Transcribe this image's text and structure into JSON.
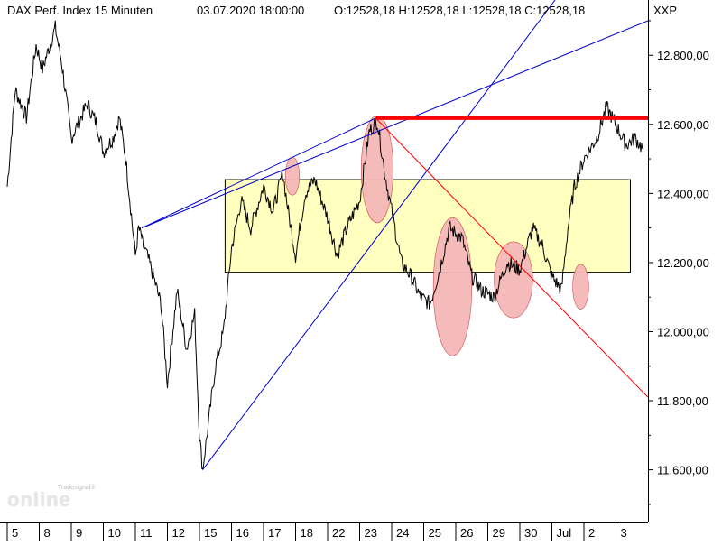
{
  "header": {
    "title": "DAX Perf. Index 15 Minuten",
    "datetime": "03.07.2020 18:00:00",
    "ohlc": "O:12528,18 H:12528,18 L:12528,18 C:12528,18",
    "unit": "XXP"
  },
  "logo": {
    "top": "Tradesignal®",
    "main": "online"
  },
  "colors": {
    "axis": "#000000",
    "price": "#000000",
    "trendline": "#0000cc",
    "resistance": "#ff0000",
    "box_fill": "#ffffc0",
    "ellipse_fill": "#f5b8b8"
  },
  "chart_data": {
    "type": "line",
    "ylim": [
      11450,
      12960
    ],
    "ylabels": [
      "12.800,00",
      "12.600,00",
      "12.400,00",
      "12.200,00",
      "12.000,00",
      "11.800,00",
      "11.600,00"
    ],
    "yvalues": [
      12800,
      12600,
      12400,
      12200,
      12000,
      11800,
      11600
    ],
    "xlabels": [
      "5",
      "8",
      "9",
      "10",
      "11",
      "12",
      "15",
      "16",
      "17",
      "18",
      "22",
      "23",
      "24",
      "25",
      "26",
      "29",
      "30",
      "Jul",
      "2",
      "3"
    ],
    "x_range": [
      0,
      20
    ],
    "session_starts": [
      0,
      1,
      2,
      3,
      4,
      5,
      6,
      7,
      8,
      9,
      10,
      11,
      12,
      13,
      14,
      15,
      16,
      17,
      18,
      19
    ],
    "price_path": [
      [
        0,
        12420
      ],
      [
        0.25,
        12700
      ],
      [
        0.6,
        12620
      ],
      [
        0.9,
        12830
      ],
      [
        1.1,
        12760
      ],
      [
        1.5,
        12880
      ],
      [
        1.7,
        12780
      ],
      [
        2.0,
        12560
      ],
      [
        2.5,
        12660
      ],
      [
        2.8,
        12600
      ],
      [
        3.0,
        12520
      ],
      [
        3.3,
        12560
      ],
      [
        3.5,
        12620
      ],
      [
        3.7,
        12500
      ],
      [
        4.0,
        12220
      ],
      [
        4.1,
        12300
      ],
      [
        4.5,
        12180
      ],
      [
        4.8,
        12080
      ],
      [
        5.0,
        11850
      ],
      [
        5.3,
        12120
      ],
      [
        5.6,
        11950
      ],
      [
        5.85,
        12050
      ],
      [
        6.0,
        11700
      ],
      [
        6.1,
        11600
      ],
      [
        6.5,
        11900
      ],
      [
        6.75,
        12000
      ],
      [
        7.0,
        12240
      ],
      [
        7.3,
        12380
      ],
      [
        7.6,
        12300
      ],
      [
        8.0,
        12420
      ],
      [
        8.3,
        12350
      ],
      [
        8.6,
        12460
      ],
      [
        8.8,
        12330
      ],
      [
        9.0,
        12220
      ],
      [
        9.3,
        12400
      ],
      [
        9.6,
        12440
      ],
      [
        10.0,
        12330
      ],
      [
        10.3,
        12220
      ],
      [
        10.6,
        12300
      ],
      [
        11.0,
        12380
      ],
      [
        11.3,
        12580
      ],
      [
        11.55,
        12610
      ],
      [
        11.8,
        12450
      ],
      [
        12.0,
        12350
      ],
      [
        12.3,
        12200
      ],
      [
        12.6,
        12160
      ],
      [
        12.9,
        12100
      ],
      [
        13.2,
        12080
      ],
      [
        13.5,
        12180
      ],
      [
        13.8,
        12300
      ],
      [
        14.2,
        12270
      ],
      [
        14.5,
        12160
      ],
      [
        14.8,
        12120
      ],
      [
        15.2,
        12100
      ],
      [
        15.6,
        12200
      ],
      [
        16.0,
        12180
      ],
      [
        16.4,
        12300
      ],
      [
        16.7,
        12250
      ],
      [
        17.0,
        12160
      ],
      [
        17.3,
        12120
      ],
      [
        17.5,
        12300
      ],
      [
        17.7,
        12420
      ],
      [
        18.0,
        12500
      ],
      [
        18.4,
        12560
      ],
      [
        18.7,
        12650
      ],
      [
        19.0,
        12600
      ],
      [
        19.3,
        12540
      ],
      [
        19.6,
        12560
      ],
      [
        19.85,
        12528
      ]
    ],
    "range_box": {
      "x": [
        6.8,
        19.45
      ],
      "y": [
        12172,
        12440
      ]
    },
    "resistance": {
      "y": 12618,
      "x": [
        11.5,
        20.0
      ]
    },
    "trendlines": [
      {
        "from": [
          4.2,
          12300
        ],
        "to": [
          11.5,
          12618
        ]
      },
      {
        "from": [
          6.1,
          11600
        ],
        "to": [
          17.1,
          12960
        ]
      },
      {
        "from": [
          4.2,
          12300
        ],
        "to": [
          20.0,
          12900
        ]
      },
      {
        "from": [
          11.5,
          12618
        ],
        "to": [
          20.0,
          11810
        ]
      }
    ],
    "ellipses": [
      {
        "cx": 8.9,
        "cy": 12450,
        "rx": 0.22,
        "ry": 55
      },
      {
        "cx": 11.55,
        "cy": 12470,
        "rx": 0.5,
        "ry": 155
      },
      {
        "cx": 13.9,
        "cy": 12130,
        "rx": 0.6,
        "ry": 200
      },
      {
        "cx": 15.8,
        "cy": 12150,
        "rx": 0.6,
        "ry": 110
      },
      {
        "cx": 17.9,
        "cy": 12130,
        "rx": 0.25,
        "ry": 65
      }
    ]
  }
}
